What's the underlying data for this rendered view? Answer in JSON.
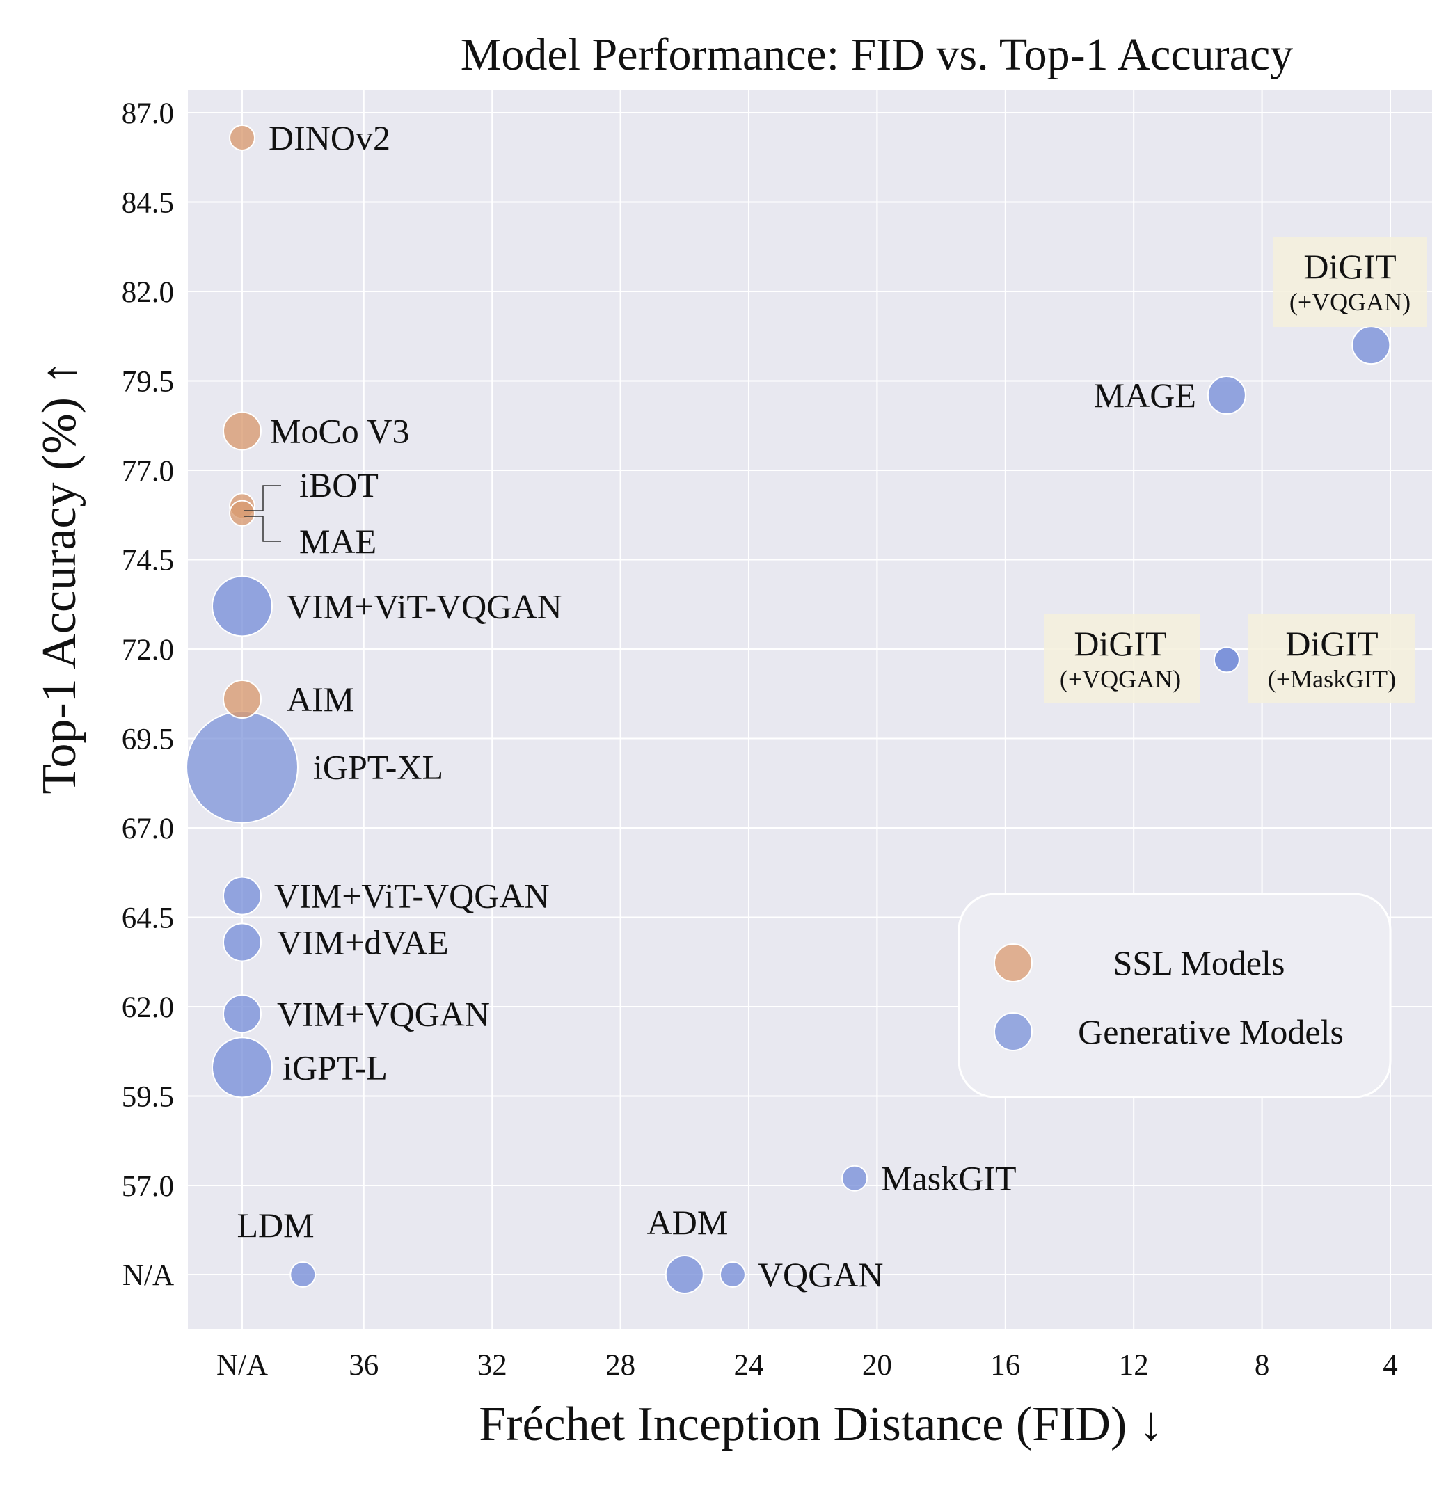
{
  "chart_data": {
    "type": "scatter",
    "title": "Model Performance: FID vs. Top-1 Accuracy",
    "xlabel": "Fréchet Inception Distance (FID) ↓",
    "ylabel": "Top-1 Accuracy (%) ↑",
    "x_axis": {
      "reversed": true,
      "ticks": [
        "N/A",
        "36",
        "32",
        "28",
        "24",
        "20",
        "16",
        "12",
        "8",
        "4"
      ],
      "range": [
        "N/A",
        2.8
      ]
    },
    "y_axis": {
      "ticks": [
        "N/A",
        "57.0",
        "59.5",
        "62.0",
        "64.5",
        "67.0",
        "69.5",
        "72.0",
        "74.5",
        "77.0",
        "79.5",
        "82.0",
        "84.5",
        "87.0"
      ],
      "range": [
        "N/A",
        87.0
      ]
    },
    "grid": true,
    "legend": {
      "position": "lower-right",
      "entries": [
        {
          "name": "SSL Models",
          "color": "#D99A70"
        },
        {
          "name": "Generative Models",
          "color": "#7890D8"
        }
      ]
    },
    "points": [
      {
        "label": "DINOv2",
        "group": "SSL Models",
        "x": "N/A",
        "y": 86.3,
        "size": "small"
      },
      {
        "label": "MoCo V3",
        "group": "SSL Models",
        "x": "N/A",
        "y": 78.1,
        "size": "medium"
      },
      {
        "label": "iBOT",
        "group": "SSL Models",
        "x": "N/A",
        "y": 76.0,
        "size": "small"
      },
      {
        "label": "MAE",
        "group": "SSL Models",
        "x": "N/A",
        "y": 75.8,
        "size": "small"
      },
      {
        "label": "AIM",
        "group": "SSL Models",
        "x": "N/A",
        "y": 70.6,
        "size": "medium"
      },
      {
        "label": "VIM+ViT-VQGAN",
        "group": "Generative Models",
        "x": "N/A",
        "y": 73.2,
        "size": "large"
      },
      {
        "label": "iGPT-XL",
        "group": "Generative Models",
        "x": "N/A",
        "y": 68.7,
        "size": "xlarge"
      },
      {
        "label": "VIM+ViT-VQGAN",
        "group": "Generative Models",
        "x": "N/A",
        "y": 65.1,
        "size": "medium"
      },
      {
        "label": "VIM+dVAE",
        "group": "Generative Models",
        "x": "N/A",
        "y": 63.8,
        "size": "medium"
      },
      {
        "label": "VIM+VQGAN",
        "group": "Generative Models",
        "x": "N/A",
        "y": 61.8,
        "size": "medium"
      },
      {
        "label": "iGPT-L",
        "group": "Generative Models",
        "x": "N/A",
        "y": 60.3,
        "size": "large"
      },
      {
        "label": "DiGIT",
        "sublabel": "(+VQGAN)",
        "group": "Generative Models",
        "x": 4.6,
        "y": 80.5,
        "size": "medium"
      },
      {
        "label": "MAGE",
        "group": "Generative Models",
        "x": 9.1,
        "y": 79.1,
        "size": "medium"
      },
      {
        "label": "DiGIT",
        "sublabel": "(+VQGAN)",
        "group": "Generative Models",
        "x": 9.1,
        "y": 71.7,
        "size": "small"
      },
      {
        "label": "DiGIT",
        "sublabel": "(+MaskGIT)",
        "group": "Generative Models",
        "x": 9.1,
        "y": 71.7,
        "size": "small"
      },
      {
        "label": "MaskGIT",
        "group": "Generative Models",
        "x": 20.7,
        "y": 57.2,
        "size": "small"
      },
      {
        "label": "LDM",
        "group": "Generative Models",
        "x": 37.9,
        "y": "N/A",
        "size": "small"
      },
      {
        "label": "ADM",
        "group": "Generative Models",
        "x": 26.0,
        "y": "N/A",
        "size": "medium"
      },
      {
        "label": "VQGAN",
        "group": "Generative Models",
        "x": 24.5,
        "y": "N/A",
        "size": "small"
      }
    ]
  }
}
